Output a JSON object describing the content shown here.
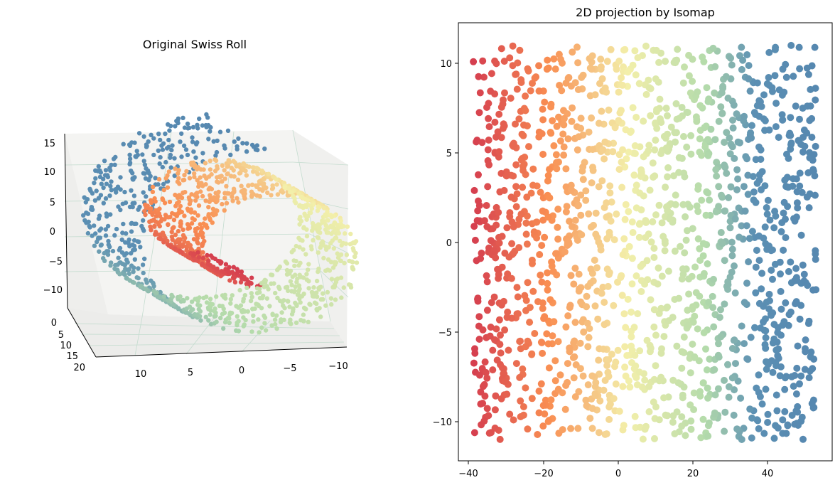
{
  "colors": {
    "red": "#d53e4f",
    "orange": "#f98e52",
    "yellow": "#f3efaa",
    "pale_green": "#b4dbab",
    "blue": "#5b8fb3",
    "pane": "#f4f4f2",
    "grid": "#c4dccf"
  },
  "chart_data": [
    {
      "type": "scatter",
      "projection": "3d",
      "title": "Original Swiss Roll",
      "xlabel": "",
      "ylabel": "",
      "zlabel": "",
      "x_ticks": [
        "10",
        "5",
        "0",
        "−5",
        "−10"
      ],
      "y_ticks": [
        "0",
        "5",
        "10",
        "15",
        "20"
      ],
      "z_ticks": [
        "15",
        "10",
        "5",
        "0",
        "−5",
        "−10"
      ],
      "xlim": [
        -11,
        14
      ],
      "ylim": [
        0,
        21
      ],
      "zlim": [
        -12,
        16
      ],
      "grid": true,
      "color_scale": "Spectral, by position along the roll (red = inner, blue = outer)",
      "points_shown": 1500
    },
    {
      "type": "scatter",
      "title": "2D projection by Isomap",
      "xlabel": "",
      "ylabel": "",
      "x_ticks": [
        "−40",
        "−20",
        "0",
        "20",
        "40"
      ],
      "y_ticks": [
        "10",
        "5",
        "0",
        "−5",
        "−10"
      ],
      "xlim": [
        -42,
        57
      ],
      "ylim": [
        -12,
        12
      ],
      "grid": false,
      "color_scale": "Spectral, increasing with x (red at x≈-40, blue at x≈50)",
      "points_shown": 1500
    }
  ]
}
